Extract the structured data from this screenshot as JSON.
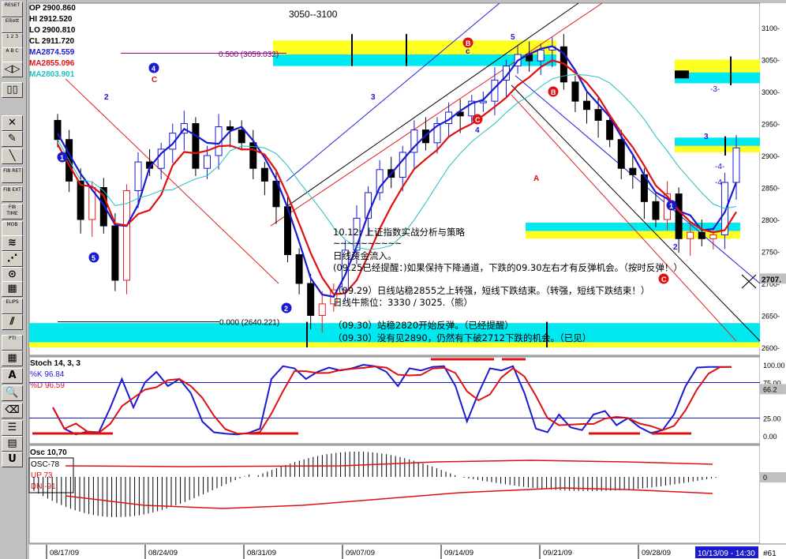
{
  "toolbar": {
    "items": [
      {
        "name": "reset-button",
        "label": "RESET"
      },
      {
        "name": "elliott-button",
        "label": "Elliott"
      },
      {
        "name": "wave-label-button",
        "label": "1 2 3"
      },
      {
        "name": "abc-label-button",
        "label": "A B C"
      },
      {
        "name": "shift-button",
        "label": "◁▷"
      },
      {
        "name": "split-button",
        "label": "▯▯"
      },
      {
        "name": "delete-button",
        "label": "✕"
      },
      {
        "name": "pencil-button",
        "label": "✎"
      },
      {
        "name": "line-button",
        "label": "╲"
      },
      {
        "name": "fib-ret-button",
        "label": "FIB RET"
      },
      {
        "name": "fib-ext-button",
        "label": "FIB EXT"
      },
      {
        "name": "fib-time-button",
        "label": "FIB TIME"
      },
      {
        "name": "mob-button",
        "label": "MOB"
      },
      {
        "name": "fan-button",
        "label": "≋"
      },
      {
        "name": "fan2-button",
        "label": "⋰"
      },
      {
        "name": "arc-button",
        "label": "⊙"
      },
      {
        "name": "grid-button",
        "label": "▦"
      },
      {
        "name": "ellipse-button",
        "label": "ELIPS"
      },
      {
        "name": "channel-button",
        "label": "⫽"
      },
      {
        "name": "pti-button",
        "label": "PTI"
      },
      {
        "name": "table-button",
        "label": "▦"
      },
      {
        "name": "text-button",
        "label": "A"
      },
      {
        "name": "zoom-button",
        "label": "🔍"
      },
      {
        "name": "eraser-button",
        "label": "⌫"
      },
      {
        "name": "list-button",
        "label": "☰"
      },
      {
        "name": "notes-button",
        "label": "▤"
      },
      {
        "name": "magnet-button",
        "label": "U"
      }
    ]
  },
  "header": {
    "op": "OP 2900.860",
    "hi": "HI 2912.520",
    "lo": "LO 2900.810",
    "cl": "CL 2911.720",
    "ma1": "MA2874.559",
    "ma2": "MA2855.096",
    "ma3": "MA2803.901"
  },
  "colors": {
    "ma1": "#1a1ad0",
    "ma2": "#e01010",
    "ma3": "#20c0c0",
    "cyan_band": "#00e8f0",
    "yellow_band": "#ffff20",
    "down_candle": "#000000"
  },
  "chart_data": [
    {
      "type": "candlestick",
      "title": "3050--3100",
      "price_ticks": [
        "3100-",
        "3050-",
        "3000-",
        "2950-",
        "2900-",
        "2850-",
        "2800-",
        "2750-",
        "2700-",
        "2650-",
        "2600-"
      ],
      "last_price_label": "2707.",
      "date_labels": [
        "08/17/09",
        "08/24/09",
        "08/31/09",
        "09/07/09",
        "09/14/09",
        "09/21/09",
        "09/28/09"
      ],
      "current_time": "10/13/09 - 14:30",
      "bar_index": "#61",
      "fib_level_upper": "0.500 (3059.032)",
      "fib_level_lower": "0.000 (2640.221)",
      "wave_labels": [
        {
          "text": "4",
          "color": "blue"
        },
        {
          "text": "C",
          "color": "red"
        },
        {
          "text": "5",
          "color": "blue"
        },
        {
          "text": "3",
          "color": "blue"
        },
        {
          "text": "2",
          "color": "blue"
        },
        {
          "text": "5",
          "color": "blue"
        },
        {
          "text": "B",
          "color": "red"
        },
        {
          "text": "c",
          "color": "blue"
        },
        {
          "text": "C",
          "color": "red"
        },
        {
          "text": "4",
          "color": "blue"
        },
        {
          "text": "B",
          "color": "red"
        },
        {
          "text": "A",
          "color": "red"
        },
        {
          "text": "1",
          "color": "blue"
        },
        {
          "text": "2",
          "color": "blue"
        },
        {
          "text": "C",
          "color": "red"
        },
        {
          "text": "3",
          "color": "blue"
        },
        {
          "text": "1",
          "color": "blue"
        },
        {
          "text": "2",
          "color": "blue"
        },
        {
          "text": "-3-",
          "color": "blue"
        },
        {
          "text": "-4-",
          "color": "blue"
        },
        {
          "text": "-4-",
          "color": "blue"
        }
      ]
    },
    {
      "type": "line",
      "title": "Stoch 14, 3, 3",
      "series": [
        {
          "name": "%K  96.84",
          "color": "#1a1ad0"
        },
        {
          "name": "%D  96.59",
          "color": "#e01010"
        }
      ],
      "ticks": [
        "100.00",
        "75.00",
        "66.2",
        "25.00",
        "0.00"
      ]
    },
    {
      "type": "bar",
      "title": "Osc 10,70",
      "labels": [
        "OSC-78",
        "UP   73",
        "DN   -91"
      ],
      "ticks": [
        "0"
      ]
    }
  ],
  "notes": {
    "title": "10.12: 上证指数实战分析与策略",
    "tilde": "~~~~~~~~~~",
    "l1": "日线资金流入。",
    "l2": "(09.25已经提醒：)如果保持下降通道，下跌的09.30左右才有反弹机会。（按时反弹！）",
    "l3": "（09.29）日线站稳2855之上转强，短线下跌结束。（转强，短线下跌结束！）",
    "l4": "日线牛熊位：3330 / 3025.（熊）",
    "l5": "（09.30）站稳2820开始反弹。（已经提醒）",
    "l6": "（09.30）没有见2890，仍然有下破2712下跌的机会。（已见）"
  }
}
